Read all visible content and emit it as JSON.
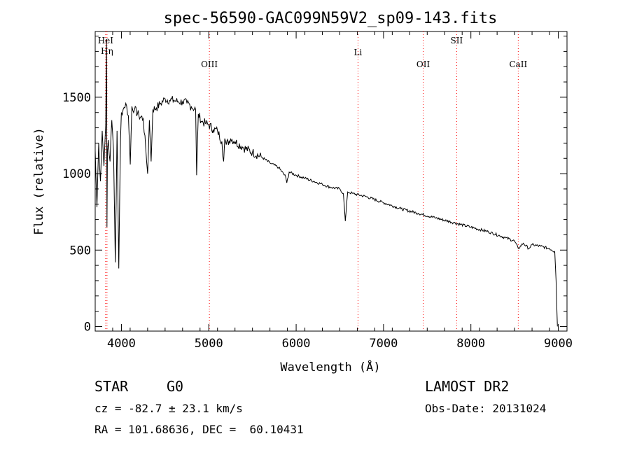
{
  "chart_data": {
    "type": "line",
    "title": "spec-56590-GAC099N59V2_sp09-143.fits",
    "xlabel": "Wavelength (Å)",
    "ylabel": "Flux (relative)",
    "xlim": [
      3700,
      9100
    ],
    "ylim": [
      -30,
      1930
    ],
    "xticks": [
      4000,
      5000,
      6000,
      7000,
      8000,
      9000
    ],
    "yticks": [
      0,
      500,
      1000,
      1500
    ],
    "grid": false,
    "series": [
      {
        "x": [
          3700,
          3720,
          3740,
          3760,
          3780,
          3800,
          3820,
          3830,
          3835,
          3840,
          3850,
          3870,
          3890,
          3910,
          3930,
          3950,
          3970,
          3990,
          4000,
          4020,
          4050,
          4080,
          4101,
          4120,
          4150,
          4200,
          4250,
          4280,
          4300,
          4320,
          4340,
          4360,
          4400,
          4450,
          4500,
          4550,
          4600,
          4650,
          4700,
          4750,
          4800,
          4850,
          4861,
          4880,
          4920,
          4960,
          5000,
          5050,
          5100,
          5150,
          5170,
          5183,
          5200,
          5250,
          5300,
          5400,
          5500,
          5600,
          5700,
          5800,
          5880,
          5893,
          5920,
          6000,
          6100,
          6200,
          6300,
          6400,
          6500,
          6540,
          6563,
          6590,
          6650,
          6800,
          7000,
          7200,
          7400,
          7600,
          7800,
          8000,
          8200,
          8400,
          8498,
          8542,
          8600,
          8662,
          8700,
          8800,
          8900,
          8960,
          8975,
          8985,
          8990
        ],
        "y": [
          1150,
          780,
          1200,
          950,
          1280,
          1050,
          1320,
          1880,
          650,
          1150,
          1220,
          1080,
          1350,
          1150,
          420,
          1280,
          380,
          1230,
          1400,
          1420,
          1460,
          1380,
          1060,
          1440,
          1420,
          1380,
          1360,
          1150,
          1000,
          1350,
          1080,
          1420,
          1430,
          1460,
          1490,
          1480,
          1480,
          1470,
          1470,
          1460,
          1440,
          1420,
          990,
          1390,
          1340,
          1330,
          1320,
          1290,
          1280,
          1210,
          1080,
          1230,
          1190,
          1230,
          1210,
          1170,
          1140,
          1110,
          1070,
          1040,
          980,
          940,
          1010,
          990,
          970,
          950,
          930,
          910,
          900,
          870,
          690,
          880,
          870,
          850,
          810,
          770,
          740,
          710,
          680,
          650,
          620,
          580,
          560,
          510,
          545,
          510,
          535,
          525,
          510,
          490,
          300,
          100,
          0
        ]
      }
    ],
    "line_markers": [
      {
        "name": "HeI",
        "x": 3819
      },
      {
        "name": "Hη",
        "x": 3835
      },
      {
        "name": "OIII",
        "x": 5007
      },
      {
        "name": "Li",
        "x": 6708
      },
      {
        "name": "OII",
        "x": 7454
      },
      {
        "name": "SII",
        "x": 7837
      },
      {
        "name": "CaII",
        "x": 8542
      }
    ],
    "marker_color": "#ff0000"
  },
  "info": {
    "class": "STAR",
    "subclass": "G0",
    "survey": "LAMOST DR2",
    "cz": "cz = -82.7 ± 23.1 km/s",
    "obs_date": "Obs-Date: 20131024",
    "coords": "RA = 101.68636, DEC =  60.10431"
  }
}
